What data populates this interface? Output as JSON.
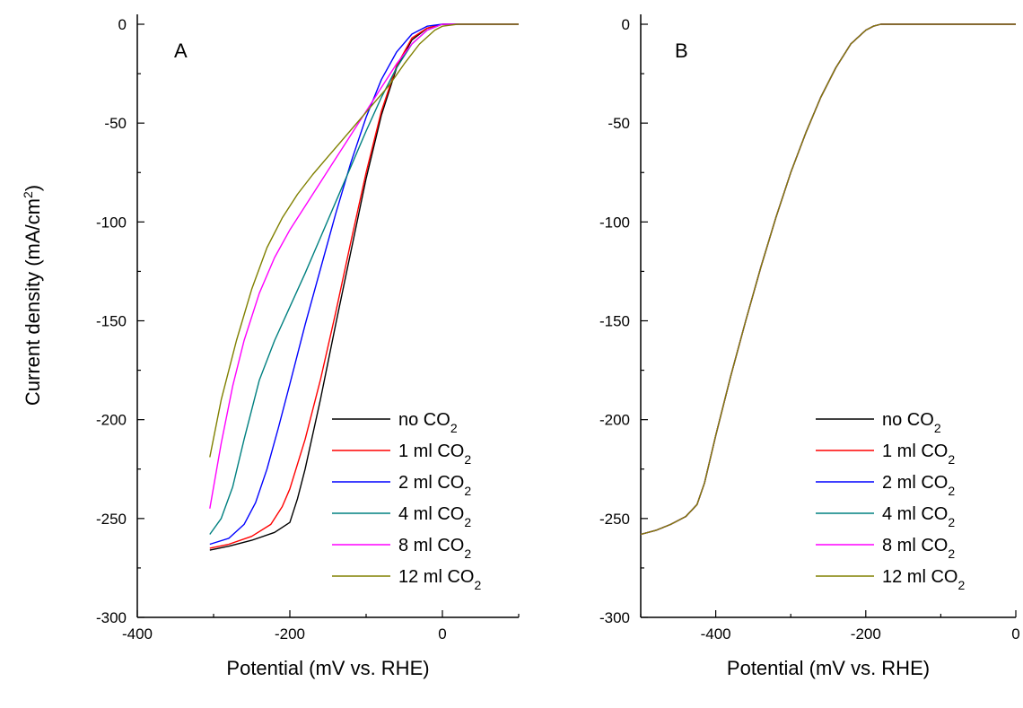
{
  "figure": {
    "ylabel": "Current density (mA/cm²)",
    "legend_suffix": "CO₂"
  },
  "chart_data": [
    {
      "type": "line",
      "panel_label": "A",
      "xlabel": "Potential (mV vs. RHE)",
      "ylabel": "Current density (mA/cm²)",
      "xlim": [
        -400,
        100
      ],
      "ylim": [
        -300,
        5
      ],
      "xticks": [
        -400,
        -200,
        0
      ],
      "yticks": [
        0,
        -50,
        -100,
        -150,
        -200,
        -250,
        -300
      ],
      "grid": false,
      "legend_position": "bottom-right",
      "series": [
        {
          "name": "no CO₂",
          "color": "#000000",
          "x": [
            -305,
            -280,
            -250,
            -220,
            -200,
            -190,
            -180,
            -160,
            -140,
            -120,
            -100,
            -80,
            -60,
            -40,
            -20,
            0,
            20,
            60,
            100
          ],
          "y": [
            -266,
            -264,
            -261,
            -257,
            -252,
            -240,
            -225,
            -190,
            -152,
            -115,
            -78,
            -46,
            -22,
            -8,
            -2,
            0,
            0,
            0,
            0
          ]
        },
        {
          "name": "1 ml CO₂",
          "color": "#ff0000",
          "x": [
            -305,
            -280,
            -250,
            -225,
            -210,
            -200,
            -180,
            -160,
            -140,
            -120,
            -100,
            -80,
            -60,
            -40,
            -20,
            0,
            20,
            60,
            100
          ],
          "y": [
            -265,
            -263,
            -259,
            -253,
            -244,
            -235,
            -210,
            -180,
            -146,
            -110,
            -75,
            -44,
            -21,
            -7,
            -2,
            0,
            0,
            0,
            0
          ]
        },
        {
          "name": "2 ml CO₂",
          "color": "#0000ff",
          "x": [
            -305,
            -280,
            -260,
            -245,
            -230,
            -215,
            -200,
            -180,
            -160,
            -140,
            -120,
            -100,
            -80,
            -60,
            -40,
            -20,
            0,
            20,
            60,
            100
          ],
          "y": [
            -263,
            -260,
            -253,
            -242,
            -225,
            -204,
            -182,
            -152,
            -124,
            -96,
            -70,
            -47,
            -28,
            -14,
            -5,
            -1,
            0,
            0,
            0,
            0
          ]
        },
        {
          "name": "4 ml CO₂",
          "color": "#008080",
          "x": [
            -305,
            -290,
            -275,
            -260,
            -240,
            -220,
            -200,
            -180,
            -160,
            -140,
            -120,
            -100,
            -80,
            -60,
            -40,
            -20,
            0,
            20,
            60,
            100
          ],
          "y": [
            -258,
            -250,
            -234,
            -210,
            -180,
            -160,
            -143,
            -126,
            -108,
            -90,
            -72,
            -54,
            -37,
            -22,
            -10,
            -3,
            0,
            0,
            0,
            0
          ]
        },
        {
          "name": "8 ml CO₂",
          "color": "#ff00ff",
          "x": [
            -305,
            -290,
            -275,
            -260,
            -240,
            -220,
            -200,
            -180,
            -160,
            -140,
            -120,
            -100,
            -80,
            -60,
            -40,
            -20,
            0,
            20,
            60,
            100
          ],
          "y": [
            -245,
            -212,
            -183,
            -160,
            -136,
            -118,
            -104,
            -92,
            -80,
            -68,
            -56,
            -44,
            -32,
            -20,
            -10,
            -3,
            0,
            0,
            0,
            0
          ]
        },
        {
          "name": "12 ml CO₂",
          "color": "#808000",
          "x": [
            -305,
            -290,
            -270,
            -250,
            -230,
            -210,
            -190,
            -170,
            -150,
            -130,
            -110,
            -90,
            -70,
            -50,
            -30,
            -10,
            0,
            20,
            60,
            100
          ],
          "y": [
            -219,
            -190,
            -160,
            -134,
            -113,
            -98,
            -86,
            -76,
            -67,
            -58,
            -49,
            -40,
            -31,
            -20,
            -10,
            -3,
            -1,
            0,
            0,
            0
          ]
        }
      ]
    },
    {
      "type": "line",
      "panel_label": "B",
      "xlabel": "Potential (mV vs. RHE)",
      "ylabel": "",
      "xlim": [
        -500,
        0
      ],
      "ylim": [
        -300,
        5
      ],
      "xticks": [
        -400,
        -200,
        0
      ],
      "yticks": [
        0,
        -50,
        -100,
        -150,
        -200,
        -250,
        -300
      ],
      "grid": false,
      "legend_position": "bottom-right",
      "series": [
        {
          "name": "no CO₂",
          "color": "#000000",
          "x": [
            -500,
            -480,
            -460,
            -440,
            -425,
            -415,
            -400,
            -380,
            -360,
            -340,
            -320,
            -300,
            -280,
            -260,
            -240,
            -220,
            -200,
            -190,
            -180,
            -160,
            -120,
            -60,
            0
          ],
          "y": [
            -258,
            -256,
            -253,
            -249,
            -243,
            -232,
            -208,
            -178,
            -150,
            -123,
            -98,
            -75,
            -55,
            -37,
            -22,
            -10,
            -3,
            -1,
            0,
            0,
            0,
            0,
            0
          ]
        },
        {
          "name": "1 ml CO₂",
          "color": "#ff0000",
          "x": [
            -500,
            -480,
            -460,
            -440,
            -425,
            -415,
            -400,
            -380,
            -360,
            -340,
            -320,
            -300,
            -280,
            -260,
            -240,
            -220,
            -200,
            -190,
            -180,
            -160,
            -120,
            -60,
            0
          ],
          "y": [
            -258,
            -256,
            -253,
            -249,
            -243,
            -232,
            -208,
            -178,
            -150,
            -123,
            -98,
            -75,
            -55,
            -37,
            -22,
            -10,
            -3,
            -1,
            0,
            0,
            0,
            0,
            0
          ]
        },
        {
          "name": "2 ml CO₂",
          "color": "#0000ff",
          "x": [
            -500,
            -480,
            -460,
            -440,
            -425,
            -415,
            -400,
            -380,
            -360,
            -340,
            -320,
            -300,
            -280,
            -260,
            -240,
            -220,
            -200,
            -190,
            -180,
            -160,
            -120,
            -60,
            0
          ],
          "y": [
            -258,
            -256,
            -253,
            -249,
            -243,
            -232,
            -208,
            -178,
            -150,
            -123,
            -98,
            -75,
            -55,
            -37,
            -22,
            -10,
            -3,
            -1,
            0,
            0,
            0,
            0,
            0
          ]
        },
        {
          "name": "4 ml CO₂",
          "color": "#008080",
          "x": [
            -500,
            -480,
            -460,
            -440,
            -425,
            -415,
            -400,
            -380,
            -360,
            -340,
            -320,
            -300,
            -280,
            -260,
            -240,
            -220,
            -200,
            -190,
            -180,
            -160,
            -120,
            -60,
            0
          ],
          "y": [
            -258,
            -256,
            -253,
            -249,
            -243,
            -232,
            -208,
            -178,
            -150,
            -123,
            -98,
            -75,
            -55,
            -37,
            -22,
            -10,
            -3,
            -1,
            0,
            0,
            0,
            0,
            0
          ]
        },
        {
          "name": "8 ml CO₂",
          "color": "#ff00ff",
          "x": [
            -500,
            -480,
            -460,
            -440,
            -425,
            -415,
            -400,
            -380,
            -360,
            -340,
            -320,
            -300,
            -280,
            -260,
            -240,
            -220,
            -200,
            -190,
            -180,
            -160,
            -120,
            -60,
            0
          ],
          "y": [
            -258,
            -256,
            -253,
            -249,
            -243,
            -232,
            -208,
            -178,
            -150,
            -123,
            -98,
            -75,
            -55,
            -37,
            -22,
            -10,
            -3,
            -1,
            0,
            0,
            0,
            0,
            0
          ]
        },
        {
          "name": "12 ml CO₂",
          "color": "#808000",
          "x": [
            -500,
            -480,
            -460,
            -440,
            -425,
            -415,
            -400,
            -380,
            -360,
            -340,
            -320,
            -300,
            -280,
            -260,
            -240,
            -220,
            -200,
            -190,
            -180,
            -160,
            -120,
            -60,
            0
          ],
          "y": [
            -258,
            -256,
            -253,
            -249,
            -243,
            -232,
            -208,
            -178,
            -150,
            -123,
            -98,
            -75,
            -55,
            -37,
            -22,
            -10,
            -3,
            -1,
            0,
            0,
            0,
            0,
            0
          ]
        }
      ]
    }
  ]
}
